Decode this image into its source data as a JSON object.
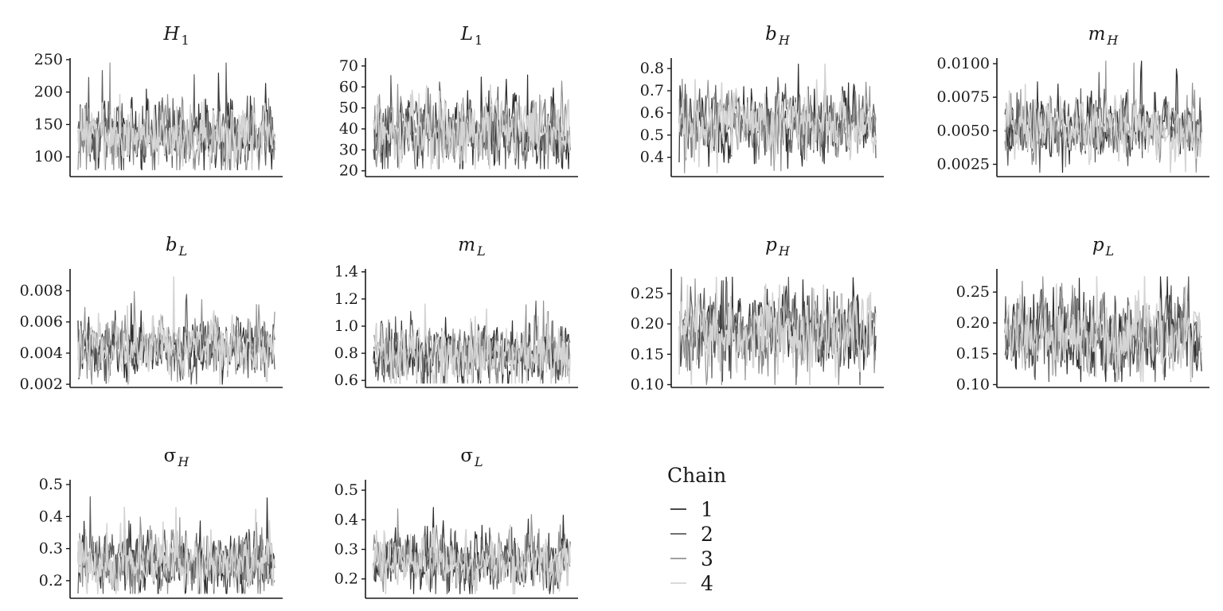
{
  "chart_data": {
    "type": "line",
    "xlabel": "",
    "ylabel": "",
    "legend": {
      "title": "Chain",
      "position": "bottom-center",
      "entries": [
        {
          "label": "1",
          "color": "#2e2e2e"
        },
        {
          "label": "2",
          "color": "#5c5c5c"
        },
        {
          "label": "3",
          "color": "#929292"
        },
        {
          "label": "4",
          "color": "#d4d4d4"
        }
      ]
    },
    "grid": false,
    "panels": [
      {
        "symbol": "H",
        "sub": "1",
        "italic_symbol": true,
        "ylim": [
          72,
          250
        ],
        "ticks": [
          100,
          150,
          200,
          250
        ],
        "tick_labels": [
          "100",
          "150",
          "200",
          "250"
        ],
        "mean": 133,
        "sd": 24,
        "spread": [
          80,
          245
        ]
      },
      {
        "symbol": "L",
        "sub": "1",
        "italic_symbol": true,
        "ylim": [
          18,
          73
        ],
        "ticks": [
          20,
          30,
          40,
          50,
          60,
          70
        ],
        "tick_labels": [
          "20",
          "30",
          "40",
          "50",
          "60",
          "70"
        ],
        "mean": 39,
        "sd": 8,
        "spread": [
          21,
          71
        ]
      },
      {
        "symbol": "b",
        "sub": "H",
        "italic_symbol": true,
        "ylim": [
          0.32,
          0.84
        ],
        "ticks": [
          0.4,
          0.5,
          0.6,
          0.7,
          0.8
        ],
        "tick_labels": [
          "0.4",
          "0.5",
          "0.6",
          "0.7",
          "0.8"
        ],
        "mean": 0.55,
        "sd": 0.07,
        "spread": [
          0.33,
          0.82
        ]
      },
      {
        "symbol": "m",
        "sub": "H",
        "italic_symbol": true,
        "ylim": [
          0.0017,
          0.0103
        ],
        "ticks": [
          0.0025,
          0.005,
          0.0075,
          0.01
        ],
        "tick_labels": [
          "0.0025",
          "0.0050",
          "0.0075",
          "0.0100"
        ],
        "mean": 0.0053,
        "sd": 0.0011,
        "spread": [
          0.0019,
          0.0102
        ]
      },
      {
        "symbol": "b",
        "sub": "L",
        "italic_symbol": true,
        "ylim": [
          0.0019,
          0.0093
        ],
        "ticks": [
          0.002,
          0.004,
          0.006,
          0.008
        ],
        "tick_labels": [
          "0.002",
          "0.004",
          "0.006",
          "0.008"
        ],
        "mean": 0.0044,
        "sd": 0.0009,
        "spread": [
          0.002,
          0.0089
        ]
      },
      {
        "symbol": "m",
        "sub": "L",
        "italic_symbol": true,
        "ylim": [
          0.56,
          1.41
        ],
        "ticks": [
          0.6,
          0.8,
          1.0,
          1.2,
          1.4
        ],
        "tick_labels": [
          "0.6",
          "0.8",
          "1.0",
          "1.2",
          "1.4"
        ],
        "mean": 0.8,
        "sd": 0.11,
        "spread": [
          0.58,
          1.37
        ]
      },
      {
        "symbol": "p",
        "sub": "H",
        "italic_symbol": true,
        "ylim": [
          0.098,
          0.288
        ],
        "ticks": [
          0.1,
          0.15,
          0.2,
          0.25
        ],
        "tick_labels": [
          "0.10",
          "0.15",
          "0.20",
          "0.25"
        ],
        "mean": 0.185,
        "sd": 0.03,
        "spread": [
          0.1,
          0.277
        ]
      },
      {
        "symbol": "p",
        "sub": "L",
        "italic_symbol": true,
        "ylim": [
          0.098,
          0.285
        ],
        "ticks": [
          0.1,
          0.15,
          0.2,
          0.25
        ],
        "tick_labels": [
          "0.10",
          "0.15",
          "0.20",
          "0.25"
        ],
        "mean": 0.18,
        "sd": 0.03,
        "spread": [
          0.105,
          0.275
        ]
      },
      {
        "symbol": "σ",
        "sub": "H",
        "italic_symbol": false,
        "ylim": [
          0.15,
          0.51
        ],
        "ticks": [
          0.2,
          0.3,
          0.4,
          0.5
        ],
        "tick_labels": [
          "0.2",
          "0.3",
          "0.4",
          "0.5"
        ],
        "mean": 0.255,
        "sd": 0.045,
        "spread": [
          0.16,
          0.5
        ]
      },
      {
        "symbol": "σ",
        "sub": "L",
        "italic_symbol": false,
        "ylim": [
          0.14,
          0.53
        ],
        "ticks": [
          0.2,
          0.3,
          0.4,
          0.5
        ],
        "tick_labels": [
          "0.2",
          "0.3",
          "0.4",
          "0.5"
        ],
        "mean": 0.26,
        "sd": 0.045,
        "spread": [
          0.15,
          0.51
        ]
      }
    ]
  }
}
